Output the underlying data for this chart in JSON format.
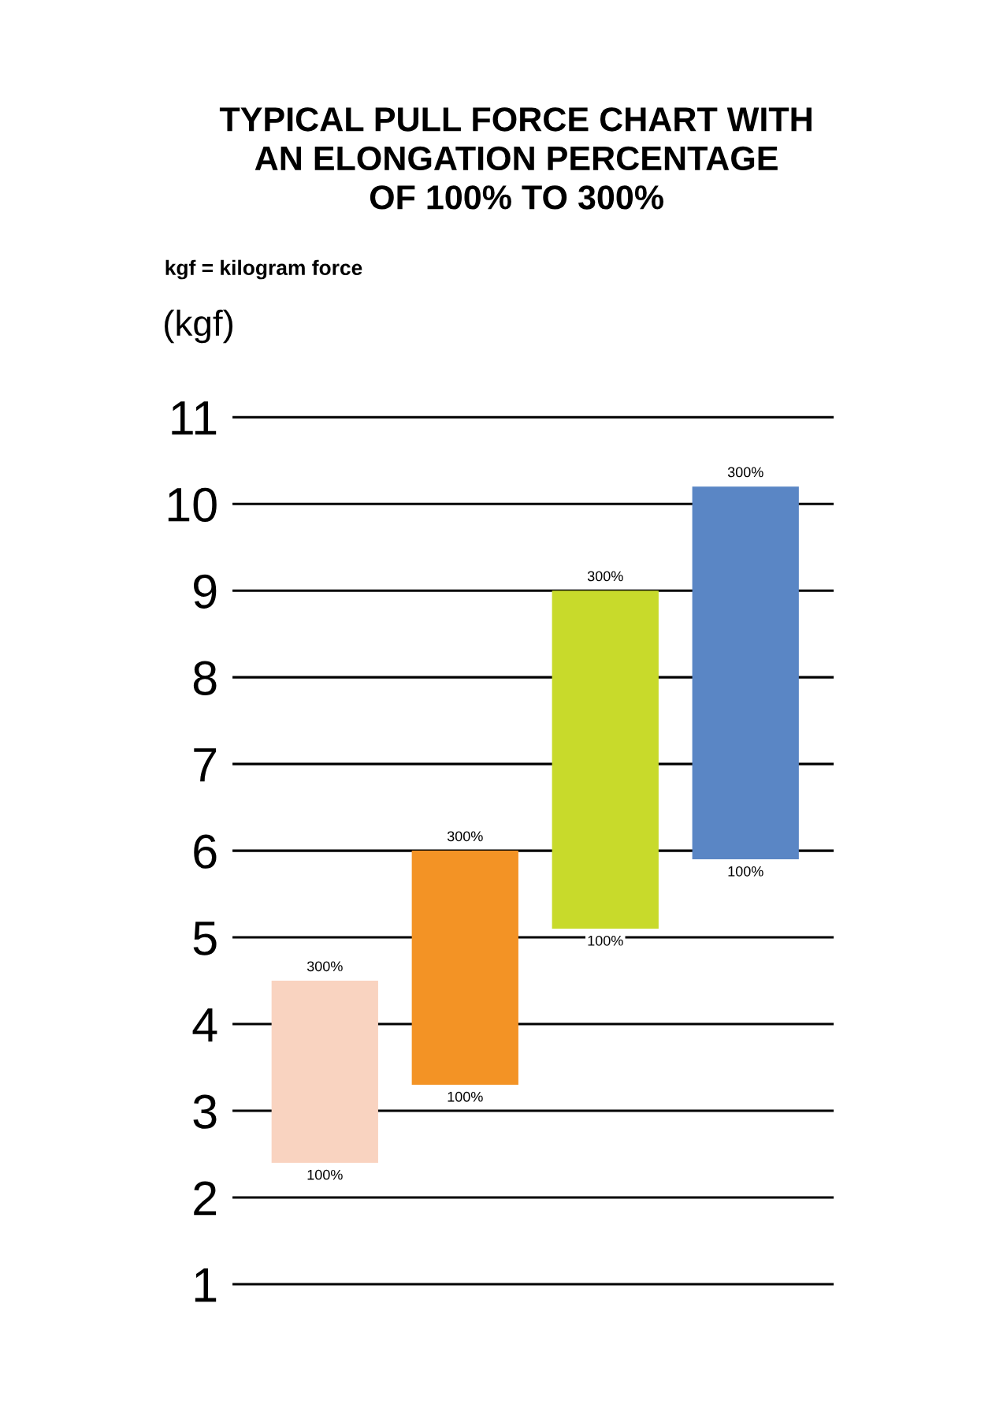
{
  "chart_data": {
    "type": "bar",
    "title": "TYPICAL PULL FORCE CHART WITH\nAN ELONGATION PERCENTAGE\nOF 100% TO 300%",
    "subtitle": "kgf = kilogram force",
    "ylabel": "(kgf)",
    "categories": [
      null,
      null,
      null,
      null
    ],
    "values": [
      2.1,
      2.7,
      3.9,
      4.3
    ],
    "base": [
      2.4,
      3.3,
      5.1,
      5.9
    ],
    "colors": [
      "#f9d3c0",
      "#f39325",
      "#c8da2b",
      "#5a86c5"
    ],
    "ylim": [
      1,
      11
    ],
    "yticks": [
      1,
      2,
      3,
      4,
      5,
      6,
      7,
      8,
      9,
      10,
      11
    ],
    "grid": "y",
    "tick_labels": "y",
    "annotations": [
      {
        "text": "300%",
        "y": 4.5
      },
      {
        "text": "100%",
        "y": 2.4
      },
      {
        "text": "300%",
        "y": 6
      },
      {
        "text": "100%",
        "y": 3.3
      },
      {
        "text": "300%",
        "y": 9
      },
      {
        "text": "100%",
        "y": 5.1
      },
      {
        "text": "300%",
        "y": 10.2
      },
      {
        "text": "100%",
        "y": 5.9
      }
    ]
  }
}
